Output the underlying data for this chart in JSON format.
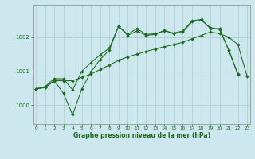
{
  "xlabel": "Graphe pression niveau de la mer (hPa)",
  "background_color": "#cce8ee",
  "grid_color": "#aacccc",
  "line_color": "#1a6b1a",
  "x_ticks": [
    0,
    1,
    2,
    3,
    4,
    5,
    6,
    7,
    8,
    9,
    10,
    11,
    12,
    13,
    14,
    15,
    16,
    17,
    18,
    19,
    20,
    21,
    22,
    23
  ],
  "y_ticks": [
    1000,
    1001,
    1002
  ],
  "ylim": [
    999.45,
    1002.95
  ],
  "xlim": [
    -0.3,
    23.3
  ],
  "series1": [
    1000.48,
    1000.52,
    1000.72,
    1000.72,
    1000.72,
    1000.82,
    1000.92,
    1001.05,
    1001.18,
    1001.32,
    1001.42,
    1001.5,
    1001.58,
    1001.65,
    1001.72,
    1001.78,
    1001.85,
    1001.95,
    1002.05,
    1002.15,
    1002.1,
    1002.0,
    1001.78,
    1000.85
  ],
  "series2": [
    1000.48,
    1000.55,
    1000.78,
    1000.78,
    1000.45,
    1001.0,
    1001.25,
    1001.48,
    1001.68,
    1002.32,
    1002.08,
    1002.25,
    1002.08,
    1002.1,
    1002.18,
    1002.12,
    1002.18,
    1002.48,
    1002.52,
    1002.25,
    1002.25,
    1001.62,
    1000.92,
    null
  ],
  "series3": [
    1000.48,
    1000.52,
    1000.72,
    1000.35,
    999.72,
    1000.48,
    1000.98,
    1001.35,
    1001.62,
    1002.32,
    1002.05,
    1002.18,
    1002.05,
    1002.08,
    1002.2,
    1002.1,
    1002.15,
    1002.45,
    1002.5,
    1002.28,
    1002.22,
    1001.62,
    1000.9,
    null
  ]
}
